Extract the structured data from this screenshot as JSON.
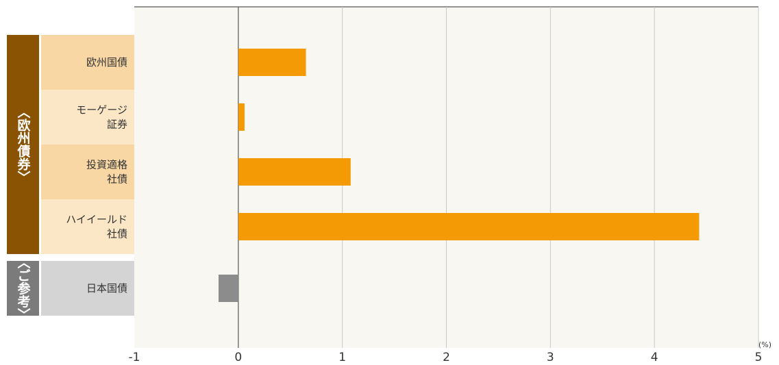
{
  "chart_data": {
    "type": "bar",
    "orientation": "horizontal",
    "categories": [
      "欧州国債",
      "モーゲージ\n証券",
      "投資適格\n社債",
      "ハイイールド\n社債",
      "日本国債"
    ],
    "values": [
      0.65,
      0.06,
      1.08,
      4.43,
      -0.19
    ],
    "groups": [
      {
        "label": "〈欧州債券〉",
        "categories": [
          0,
          1,
          2,
          3
        ],
        "color": "#8a5203",
        "label_bg": [
          "#f8d7a4",
          "#fbe6c6"
        ],
        "bar_color": "#f39a05"
      },
      {
        "label": "〈ご参考〉",
        "categories": [
          4
        ],
        "color": "#7b7b7b",
        "label_bg": [
          "#d4d4d4"
        ],
        "bar_color": "#8c8c8c"
      }
    ],
    "xlim": [
      -1,
      5
    ],
    "xticks": [
      "-1",
      "0",
      "1",
      "2",
      "3",
      "4",
      "5"
    ],
    "unit": "(%)",
    "grid": true,
    "colors": {
      "plot_bg": "#f8f7f1",
      "grid": "#c8c8c8",
      "axis": "#555555"
    }
  }
}
